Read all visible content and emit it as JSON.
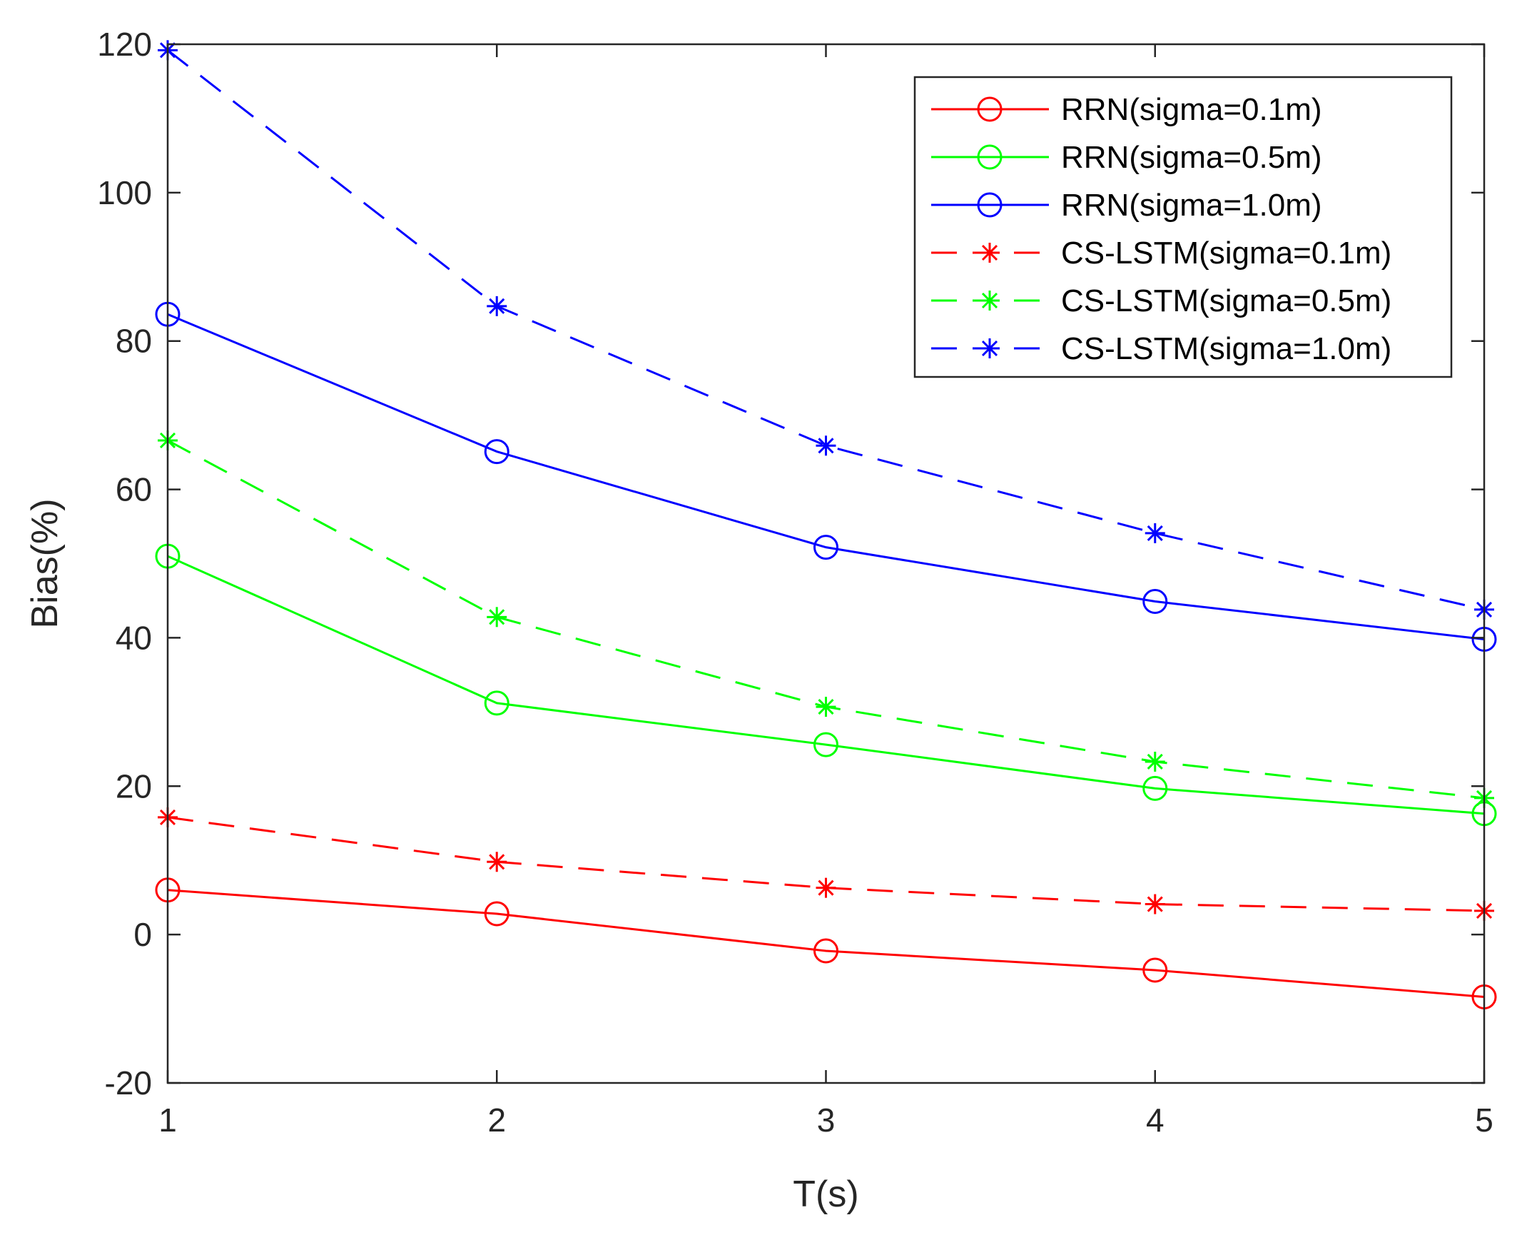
{
  "chart_data": {
    "type": "line",
    "title": "",
    "xlabel": "T(s)",
    "ylabel": "Bias(%)",
    "xlim": [
      1,
      5
    ],
    "ylim": [
      -20,
      120
    ],
    "xticks": [
      1,
      2,
      3,
      4,
      5
    ],
    "yticks": [
      -20,
      0,
      20,
      40,
      60,
      80,
      100,
      120
    ],
    "grid": false,
    "legend_position": "top-right",
    "x": [
      1,
      2,
      3,
      4,
      5
    ],
    "series": [
      {
        "name": "RRN(sigma=0.1m)",
        "color": "#ff0000",
        "line": "solid",
        "marker": "circle",
        "values": [
          6,
          2.8,
          -2.2,
          -4.8,
          -8.4
        ]
      },
      {
        "name": "RRN(sigma=0.5m)",
        "color": "#00ff00",
        "line": "solid",
        "marker": "circle",
        "values": [
          51,
          31.2,
          25.6,
          19.7,
          16.3
        ]
      },
      {
        "name": "RRN(sigma=1.0m)",
        "color": "#0000ff",
        "line": "solid",
        "marker": "circle",
        "values": [
          83.6,
          65.1,
          52.2,
          44.9,
          39.8
        ]
      },
      {
        "name": "CS-LSTM(sigma=0.1m)",
        "color": "#ff0000",
        "line": "dashed",
        "marker": "asterisk",
        "values": [
          15.8,
          9.8,
          6.3,
          4.1,
          3.2
        ]
      },
      {
        "name": "CS-LSTM(sigma=0.5m)",
        "color": "#00ff00",
        "line": "dashed",
        "marker": "asterisk",
        "values": [
          66.6,
          42.8,
          30.7,
          23.3,
          18.4
        ]
      },
      {
        "name": "CS-LSTM(sigma=1.0m)",
        "color": "#0000ff",
        "line": "dashed",
        "marker": "asterisk",
        "values": [
          119.2,
          84.7,
          65.9,
          54.1,
          43.8
        ]
      }
    ]
  }
}
